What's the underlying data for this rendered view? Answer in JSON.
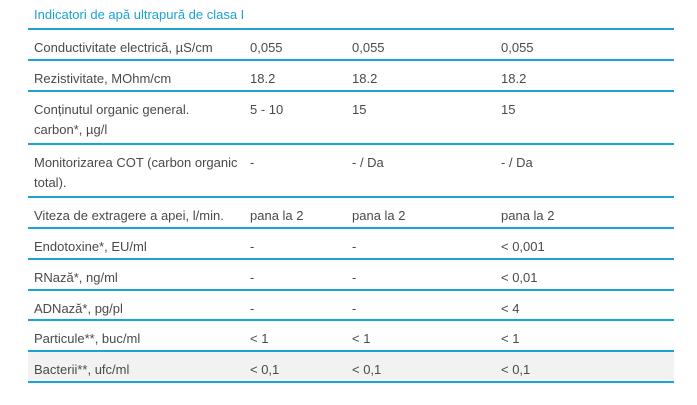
{
  "table": {
    "title": "Indicatori de apă ultrapură de clasa I",
    "rows": [
      {
        "label": "Conductivitate electrică, µS/cm",
        "v1": "0,055",
        "v2": "0,055",
        "v3": "0,055"
      },
      {
        "label": "Rezistivitate, MOhm/cm",
        "v1": "18.2",
        "v2": "18.2",
        "v3": "18.2"
      },
      {
        "label": "Conținutul organic general. carbon*, µg/l",
        "v1": "5 - 10",
        "v2": "15",
        "v3": "15"
      },
      {
        "label": "Monitorizarea COT (carbon organic total).",
        "v1": "-",
        "v2": "- / Da",
        "v3": "- / Da"
      },
      {
        "label": "Viteza de extragere a apei, l/min.",
        "v1": "pana la 2",
        "v2": "pana la 2",
        "v3": "pana la 2"
      },
      {
        "label": "Endotoxine*, EU/ml",
        "v1": "-",
        "v2": "-",
        "v3": "< 0,001"
      },
      {
        "label": "RNază*, ng/ml",
        "v1": "-",
        "v2": "-",
        "v3": "< 0,01"
      },
      {
        "label": "ADNază*, pg/pl",
        "v1": "-",
        "v2": "-",
        "v3": "< 4"
      },
      {
        "label": "Particule**, buc/ml",
        "v1": "< 1",
        "v2": "< 1",
        "v3": "< 1"
      },
      {
        "label": "Bacterii**, ufc/ml",
        "v1": "< 0,1",
        "v2": "< 0,1",
        "v3": "< 0,1"
      }
    ]
  }
}
